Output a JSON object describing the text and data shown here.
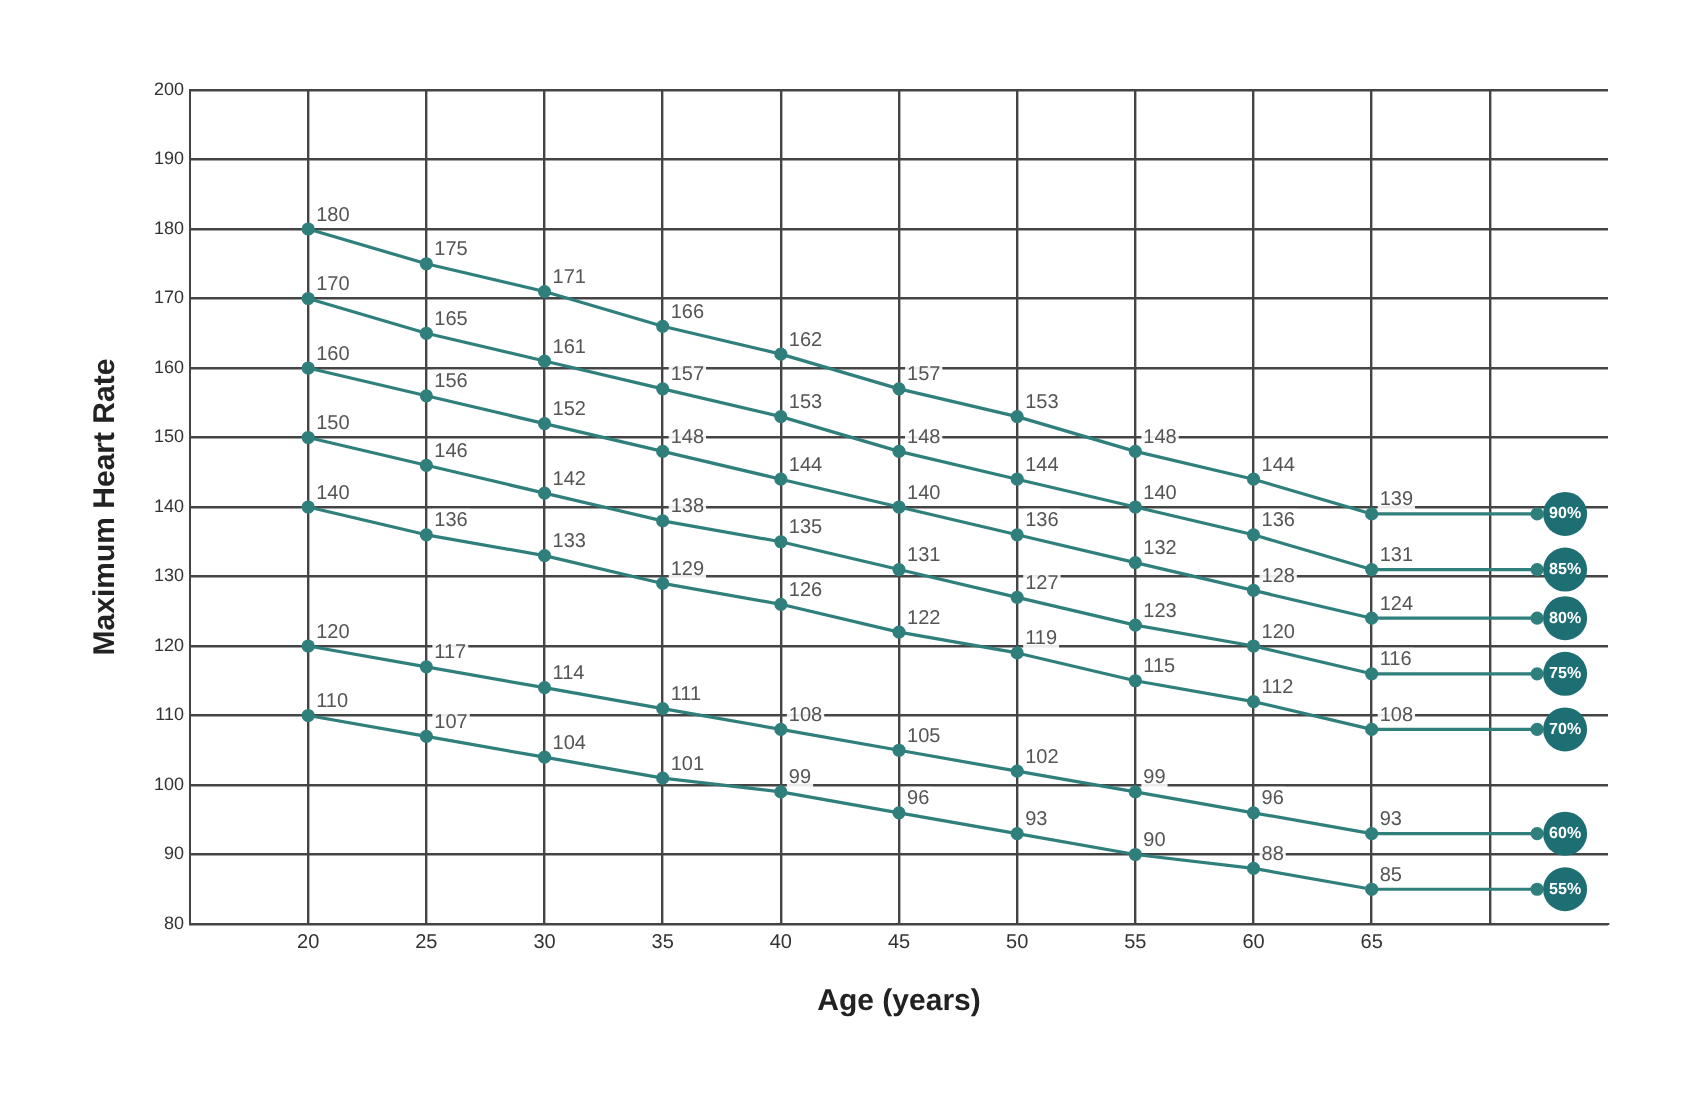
{
  "chart_data": {
    "type": "line",
    "xlabel": "Age (years)",
    "ylabel": "Maximum Heart Rate",
    "x": [
      20,
      25,
      30,
      35,
      40,
      45,
      50,
      55,
      60,
      65,
      72
    ],
    "xlim": [
      15,
      75
    ],
    "xticks": [
      20,
      25,
      30,
      35,
      40,
      45,
      50,
      55,
      60,
      65,
      {
        "value": 70,
        "label": null
      }
    ],
    "ylim": [
      80,
      200
    ],
    "yticks": [
      80,
      90,
      100,
      110,
      120,
      130,
      140,
      150,
      160,
      170,
      180,
      190,
      200
    ],
    "grid": true,
    "legend": false,
    "marker": "circle",
    "line_style": "solid",
    "series": [
      {
        "name": "90%",
        "color": "#2f7f7c",
        "values": [
          180,
          175,
          171,
          166,
          162,
          157,
          153,
          148,
          144,
          139,
          139
        ],
        "value_labels": [
          "180",
          "175",
          "171",
          "166",
          "162",
          "157",
          "153",
          "148",
          "144",
          "139",
          null
        ]
      },
      {
        "name": "85%",
        "color": "#2f7f7c",
        "values": [
          170,
          165,
          161,
          157,
          153,
          148,
          144,
          140,
          136,
          131,
          131
        ],
        "value_labels": [
          "170",
          "165",
          "161",
          "157",
          "153",
          "148",
          "144",
          "140",
          "136",
          "131",
          null
        ]
      },
      {
        "name": "80%",
        "color": "#2f7f7c",
        "values": [
          160,
          156,
          152,
          148,
          144,
          140,
          136,
          132,
          128,
          124,
          124
        ],
        "value_labels": [
          "160",
          "156",
          "152",
          "148",
          "144",
          "140",
          "136",
          "132",
          "128",
          "124",
          null
        ]
      },
      {
        "name": "75%",
        "color": "#2f7f7c",
        "values": [
          150,
          146,
          142,
          138,
          135,
          131,
          127,
          123,
          120,
          116,
          116
        ],
        "value_labels": [
          "150",
          "146",
          "142",
          "138",
          "135",
          "131",
          "127",
          "123",
          "120",
          "116",
          null
        ]
      },
      {
        "name": "70%",
        "color": "#2f7f7c",
        "values": [
          140,
          136,
          133,
          129,
          126,
          122,
          119,
          115,
          112,
          108,
          108
        ],
        "value_labels": [
          "140",
          "136",
          "133",
          "129",
          "126",
          "122",
          "119",
          "115",
          "112",
          "108",
          null
        ]
      },
      {
        "name": "60%",
        "color": "#2f7f7c",
        "values": [
          120,
          117,
          114,
          111,
          108,
          105,
          102,
          99,
          96,
          93,
          93
        ],
        "value_labels": [
          "120",
          "117",
          "114",
          "111",
          "108",
          "105",
          "102",
          "99",
          "96",
          "93",
          null
        ]
      },
      {
        "name": "55%",
        "color": "#2f7f7c",
        "values": [
          110,
          107,
          104,
          101,
          99,
          96,
          93,
          90,
          88,
          85,
          85
        ],
        "value_labels": [
          "110",
          "107",
          "104",
          "101",
          "99",
          "96",
          "93",
          "90",
          "88",
          "85",
          null
        ]
      }
    ]
  }
}
